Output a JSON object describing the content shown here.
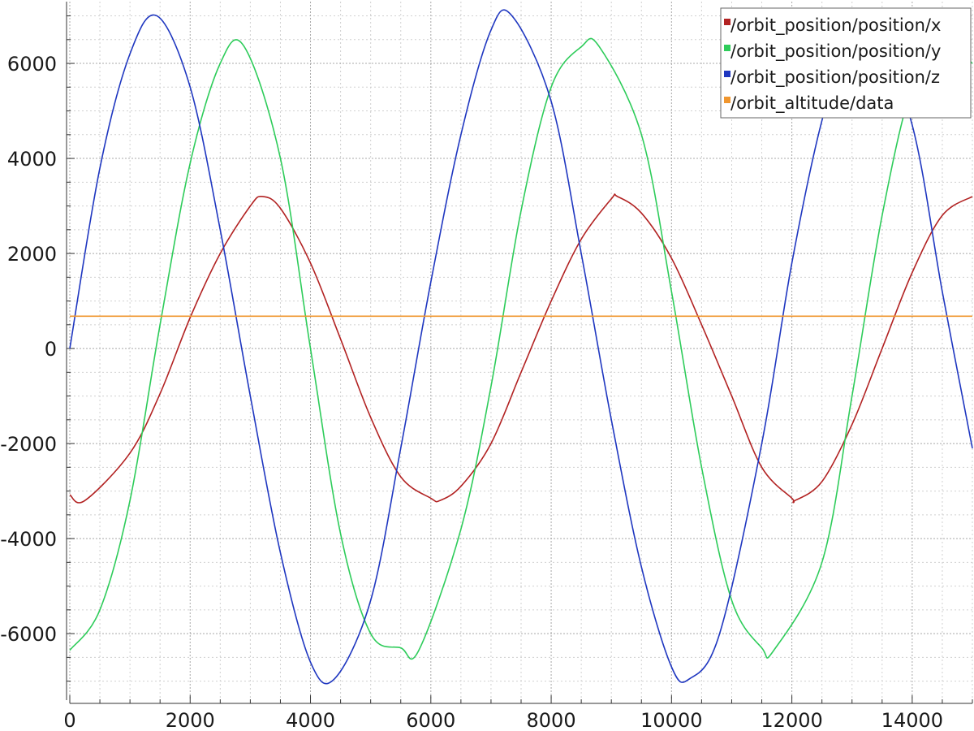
{
  "chart_data": {
    "type": "line",
    "title": "",
    "xlabel": "",
    "ylabel": "",
    "xlim": [
      0,
      15000
    ],
    "ylim": [
      -7400,
      7300
    ],
    "x_ticks": [
      0,
      2000,
      4000,
      6000,
      8000,
      10000,
      12000,
      14000
    ],
    "x_tick_labels": [
      "0",
      "2000",
      "4000",
      "6000",
      "8000",
      "10000",
      "12000",
      "14000"
    ],
    "y_ticks": [
      -6000,
      -4000,
      -2000,
      0,
      2000,
      4000,
      6000
    ],
    "y_tick_labels": [
      "-6000",
      "-4000",
      "-2000",
      "0",
      "2000",
      "4000",
      "6000"
    ],
    "grid": true,
    "legend_position": "top-right",
    "series": [
      {
        "name": "/orbit_position/position/x",
        "color": "#b22222",
        "x": [
          0,
          250,
          1000,
          1500,
          2000,
          2500,
          3000,
          3200,
          3500,
          4000,
          4500,
          5000,
          5500,
          6000,
          6150,
          6500,
          7000,
          7500,
          8000,
          8500,
          9000,
          9100,
          9500,
          10000,
          10500,
          11000,
          11500,
          12000,
          12050,
          12500,
          13000,
          13500,
          14000,
          14500,
          15000
        ],
        "y": [
          -3080,
          -3200,
          -2200,
          -950,
          650,
          2000,
          3000,
          3200,
          2950,
          1800,
          200,
          -1450,
          -2700,
          -3150,
          -3200,
          -2900,
          -2000,
          -500,
          1000,
          2300,
          3150,
          3200,
          2850,
          1900,
          500,
          -1000,
          -2500,
          -3150,
          -3200,
          -2800,
          -1600,
          0,
          1600,
          2800,
          3200
        ]
      },
      {
        "name": "/orbit_position/position/y",
        "color": "#2ecc5a",
        "x": [
          0,
          500,
          1000,
          1500,
          2000,
          2500,
          2900,
          3500,
          4000,
          4500,
          5000,
          5500,
          5800,
          6500,
          7000,
          7500,
          8000,
          8500,
          8800,
          9500,
          10000,
          10500,
          11000,
          11500,
          11700,
          12500,
          13000,
          13500,
          14000,
          14500,
          14700,
          15000
        ],
        "y": [
          -6350,
          -5500,
          -3200,
          500,
          3900,
          6000,
          6350,
          4000,
          0,
          -3900,
          -6000,
          -6300,
          -6350,
          -3800,
          -800,
          2900,
          5500,
          6350,
          6350,
          4500,
          1200,
          -2500,
          -5300,
          -6300,
          -6350,
          -4500,
          -1000,
          2800,
          5500,
          6300,
          6350,
          6000
        ]
      },
      {
        "name": "/orbit_position/position/z",
        "color": "#1f37c0",
        "x": [
          0,
          500,
          1000,
          1450,
          2000,
          2500,
          3000,
          3500,
          4000,
          4400,
          5000,
          5500,
          6000,
          6500,
          7000,
          7350,
          8000,
          8500,
          9000,
          9500,
          10000,
          10300,
          10800,
          11500,
          12000,
          12500,
          13000,
          13300,
          14000,
          14500,
          15000
        ],
        "y": [
          0,
          3800,
          6200,
          7000,
          5500,
          2500,
          -1000,
          -4300,
          -6600,
          -6950,
          -5300,
          -2100,
          1400,
          4500,
          6700,
          7000,
          5200,
          2000,
          -1500,
          -4600,
          -6700,
          -6950,
          -6000,
          -2000,
          1800,
          4800,
          6700,
          7000,
          4700,
          1200,
          -2100
        ]
      },
      {
        "name": "/orbit_altitude/data",
        "color": "#f0962e",
        "x": [
          0,
          15000
        ],
        "y": [
          680,
          680
        ]
      }
    ]
  }
}
